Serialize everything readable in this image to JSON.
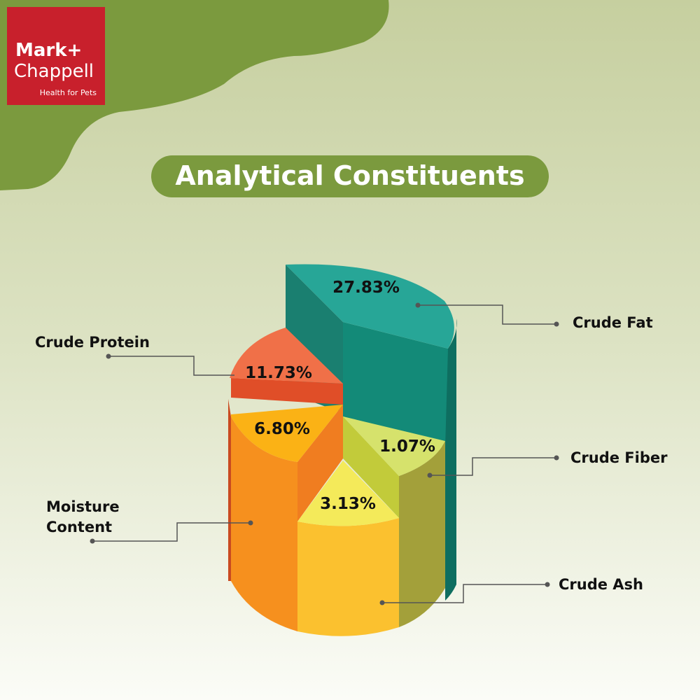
{
  "logo": {
    "name_line1": "Mark+",
    "name_line2": "Chappell",
    "tagline": "Health for Pets"
  },
  "title": "Analytical Constituents",
  "segments": [
    {
      "label": "Crude Fat",
      "value": "27.83%"
    },
    {
      "label": "Crude Protein",
      "value": "11.73%"
    },
    {
      "label": "Moisture Content",
      "value": "6.80%"
    },
    {
      "label": "Crude Fiber",
      "value": "1.07%"
    },
    {
      "label": "Crude Ash",
      "value": "3.13%"
    }
  ]
}
